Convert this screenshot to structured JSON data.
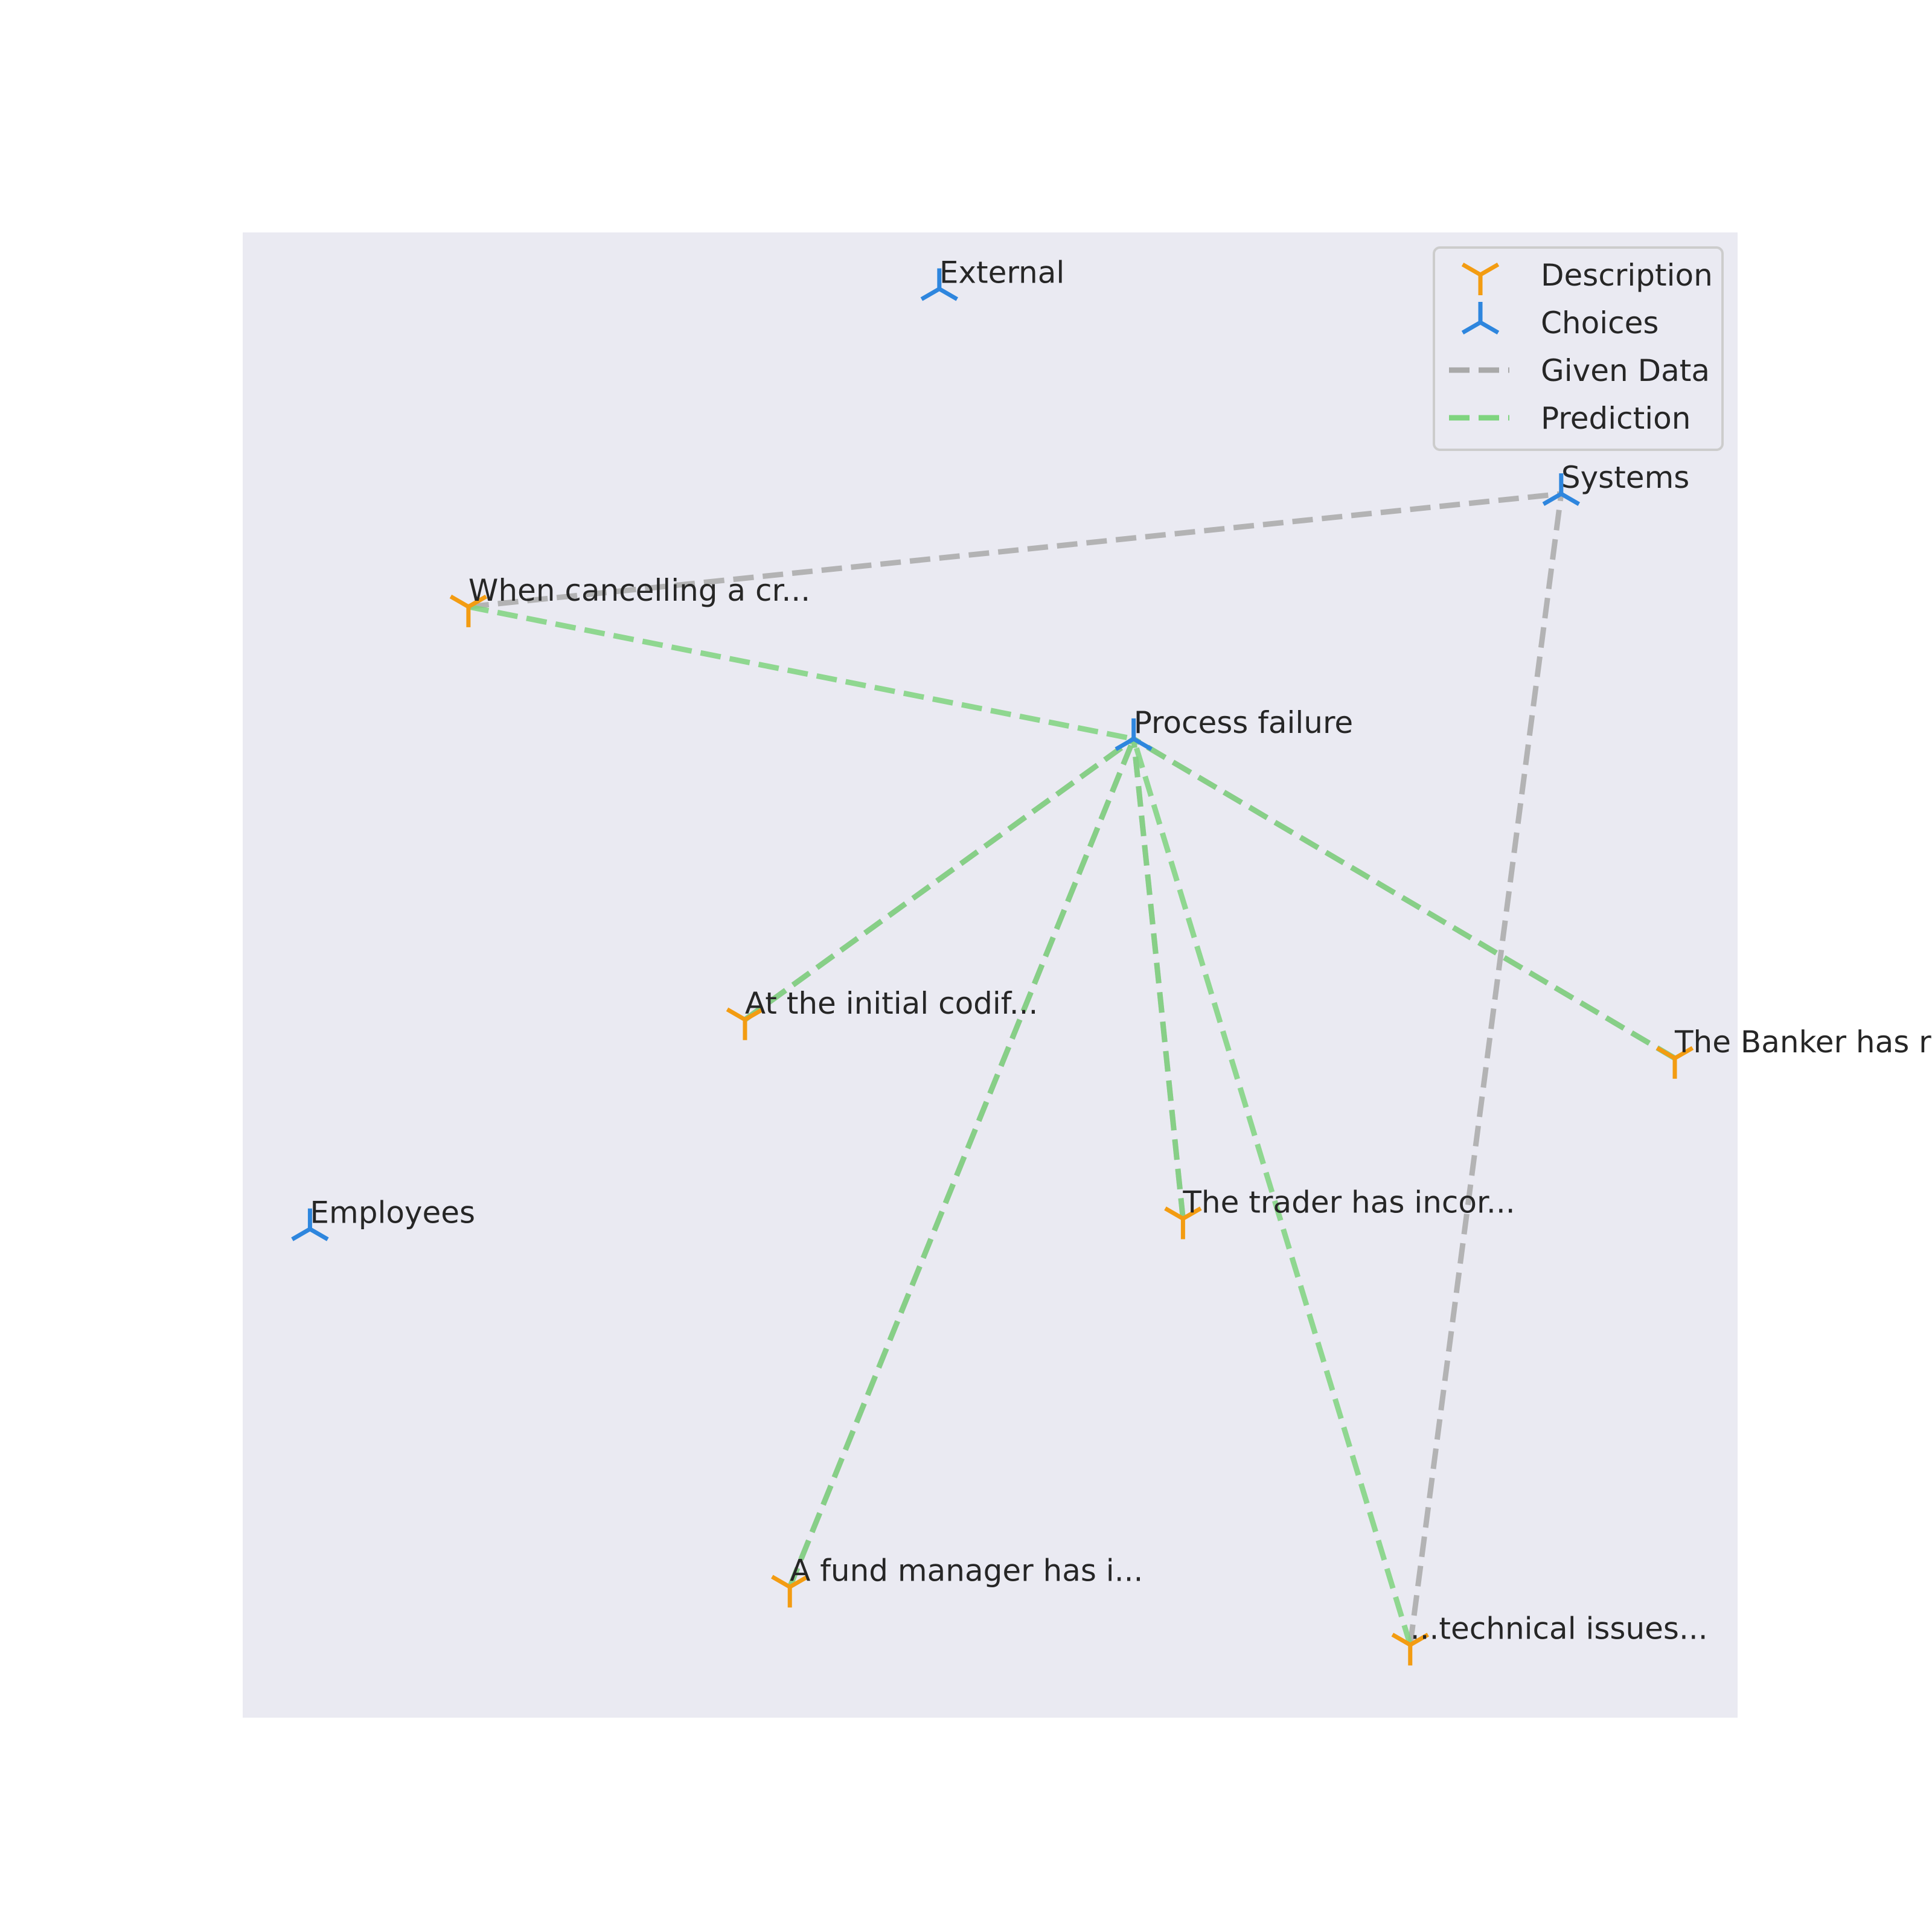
{
  "chart_data": {
    "type": "scatter",
    "title": "",
    "xlabel": "",
    "ylabel": "",
    "xlim": [
      0,
      100
    ],
    "ylim": [
      0,
      100
    ],
    "grid": false,
    "legend_placement": "top-right",
    "colors": {
      "description": "#F39C12",
      "choices": "#2E86DE",
      "given_data": "#A9A9A9",
      "prediction": "#7FD47F",
      "plot_background": "#EAEAF2"
    },
    "legend": [
      {
        "label": "Description",
        "kind": "description-marker"
      },
      {
        "label": "Choices",
        "kind": "choices-marker"
      },
      {
        "label": "Given Data",
        "kind": "given-line"
      },
      {
        "label": "Prediction",
        "kind": "prediction-line"
      }
    ],
    "choices": [
      {
        "id": "external",
        "label": "External",
        "x": 46.6,
        "y": 96.2
      },
      {
        "id": "systems",
        "label": "Systems",
        "x": 88.2,
        "y": 82.4
      },
      {
        "id": "process",
        "label": "Process failure",
        "x": 59.6,
        "y": 65.9
      },
      {
        "id": "employees",
        "label": "Employees",
        "x": 4.5,
        "y": 32.9
      }
    ],
    "descriptions": [
      {
        "id": "cancel",
        "label": "When cancelling a cr...",
        "x": 15.1,
        "y": 74.8
      },
      {
        "id": "codif",
        "label": "At the initial codif...",
        "x": 33.6,
        "y": 47.0
      },
      {
        "id": "banker",
        "label": "The Banker has re...",
        "x": 95.8,
        "y": 44.4
      },
      {
        "id": "trader",
        "label": "The trader has incor...",
        "x": 62.9,
        "y": 33.6
      },
      {
        "id": "fund",
        "label": "A fund manager has i...",
        "x": 36.6,
        "y": 8.8
      },
      {
        "id": "tech",
        "label": "...technical issues...",
        "x": 78.1,
        "y": 4.9
      }
    ],
    "given_edges": [
      {
        "from": "cancel",
        "to": "systems"
      },
      {
        "from": "tech",
        "to": "systems"
      },
      {
        "from": "codif",
        "to": "process"
      },
      {
        "from": "banker",
        "to": "process"
      },
      {
        "from": "trader",
        "to": "process"
      },
      {
        "from": "fund",
        "to": "process"
      }
    ],
    "prediction_edges": [
      {
        "from": "cancel",
        "to": "process"
      },
      {
        "from": "codif",
        "to": "process"
      },
      {
        "from": "banker",
        "to": "process"
      },
      {
        "from": "trader",
        "to": "process"
      },
      {
        "from": "fund",
        "to": "process"
      },
      {
        "from": "tech",
        "to": "process"
      }
    ]
  }
}
